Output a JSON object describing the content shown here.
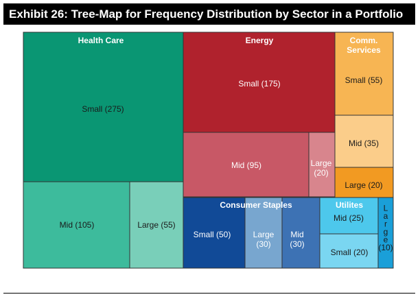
{
  "title": "Exhibit 26: Tree-Map for Frequency Distribution by Sector in a Portfolio",
  "chart_data": {
    "type": "treemap",
    "title": "Exhibit 26: Tree-Map for Frequency Distribution by Sector in a Portfolio",
    "sectors": [
      {
        "name": "Health Care",
        "label_lines": [
          "Health Care"
        ],
        "color": "#0a9673",
        "segments": [
          {
            "label": "Small (275)",
            "size": "Small",
            "value": 275,
            "color": "#0a9673"
          },
          {
            "label": "Mid (105)",
            "size": "Mid",
            "value": 105,
            "color": "#3dbb9c"
          },
          {
            "label": "Large (55)",
            "size": "Large",
            "value": 55,
            "color": "#79cfb9"
          }
        ]
      },
      {
        "name": "Energy",
        "label_lines": [
          "Energy"
        ],
        "color": "#b0222d",
        "segments": [
          {
            "label": "Small (175)",
            "size": "Small",
            "value": 175,
            "color": "#b0222d"
          },
          {
            "label": "Mid (95)",
            "size": "Mid",
            "value": 95,
            "color": "#c85866"
          },
          {
            "label": "Large (20)",
            "size": "Large",
            "value": 20,
            "color": "#d8858d"
          }
        ]
      },
      {
        "name": "Comm. Services",
        "label_lines": [
          "Comm.",
          "Services"
        ],
        "color": "#f7b553",
        "segments": [
          {
            "label": "Small (55)",
            "size": "Small",
            "value": 55,
            "color": "#f7b553"
          },
          {
            "label": "Mid (35)",
            "size": "Mid",
            "value": 35,
            "color": "#fbcd8a"
          },
          {
            "label": "Large (20)",
            "size": "Large",
            "value": 20,
            "color": "#f29a22"
          }
        ]
      },
      {
        "name": "Consumer Staples",
        "label_lines": [
          "Consumer Staples"
        ],
        "color": "#114a97",
        "segments": [
          {
            "label": "Small (50)",
            "size": "Small",
            "value": 50,
            "color": "#114a97"
          },
          {
            "label": "Large (30)",
            "size": "Large",
            "value": 30,
            "color": "#78a6cf"
          },
          {
            "label": "Mid (30)",
            "size": "Mid",
            "value": 30,
            "color": "#3d72b4"
          }
        ]
      },
      {
        "name": "Utilites",
        "label_lines": [
          "Utilites"
        ],
        "color": "#4dc8ec",
        "segments": [
          {
            "label": "Mid (25)",
            "size": "Mid",
            "value": 25,
            "color": "#4dc8ec"
          },
          {
            "label": "Small (20)",
            "size": "Small",
            "value": 20,
            "color": "#7ad6f1"
          },
          {
            "label": "Large (10)",
            "size": "Large",
            "value": 10,
            "color": "#1a9fd8"
          }
        ]
      }
    ]
  }
}
